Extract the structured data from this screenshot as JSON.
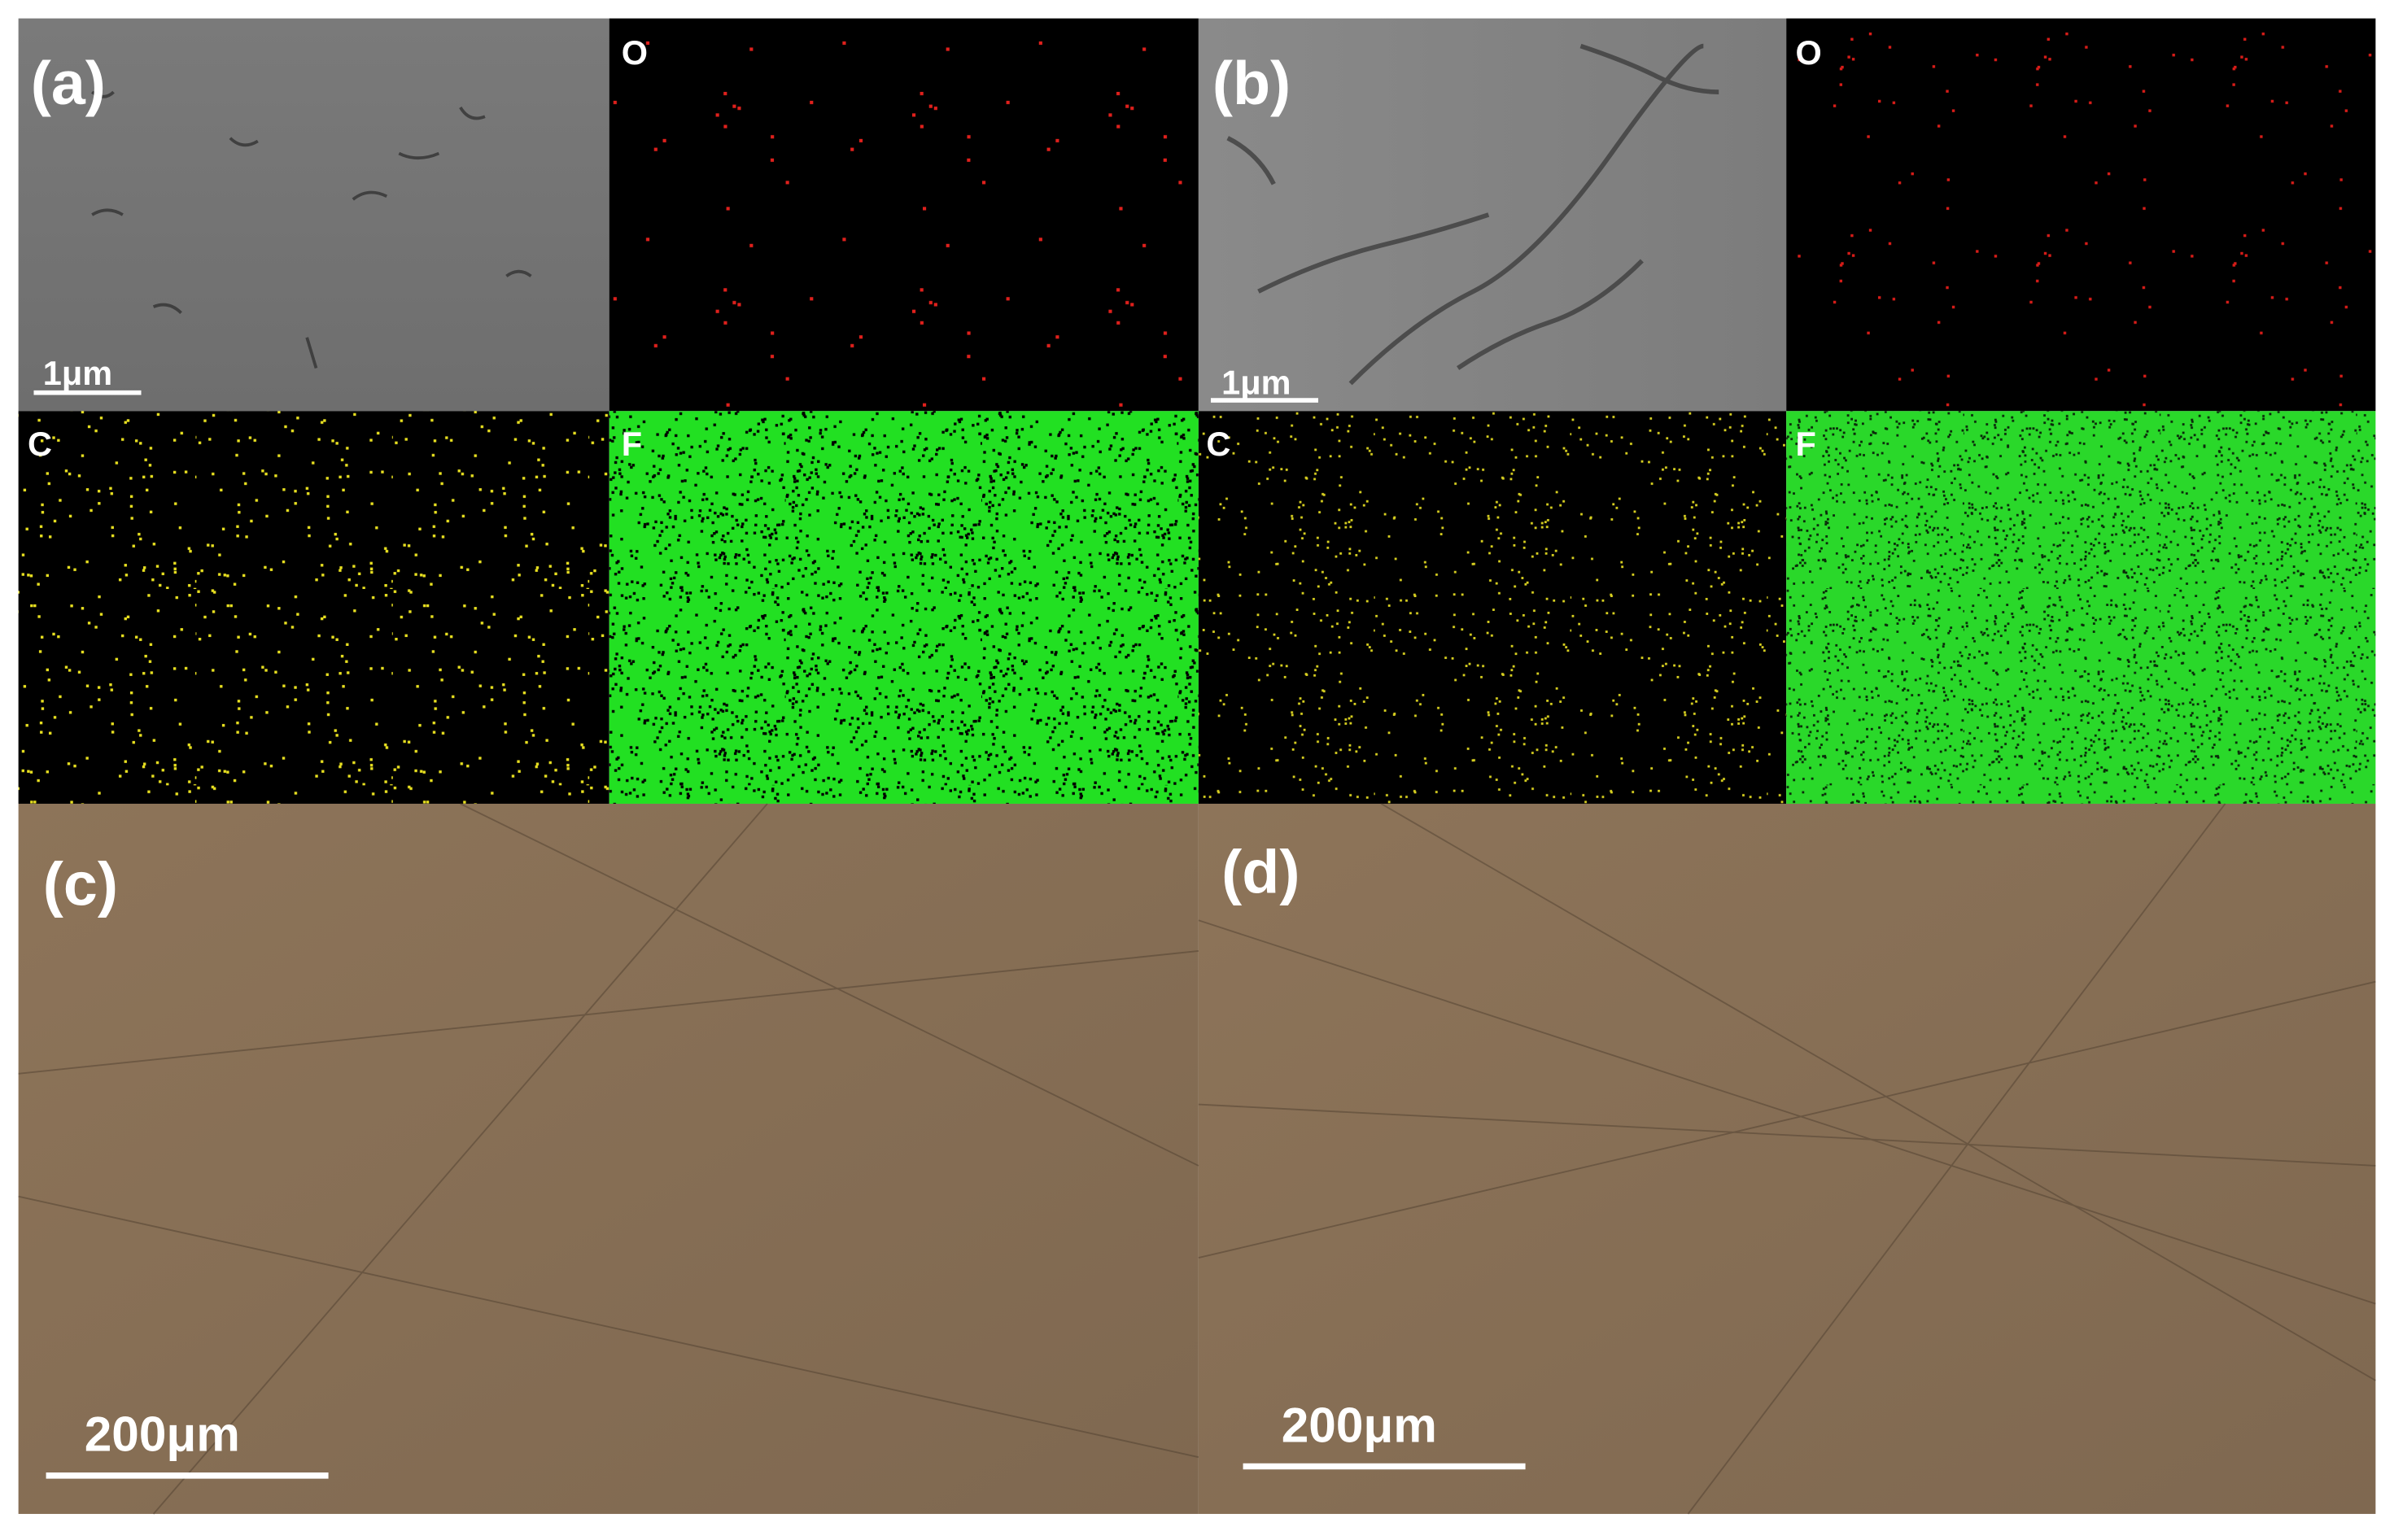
{
  "panel_a": {
    "label": "(a)",
    "scale_bar": "1μm",
    "maps": [
      "O",
      "C",
      "F"
    ]
  },
  "panel_b": {
    "label": "(b)",
    "scale_bar": "1μm",
    "maps": [
      "O",
      "C",
      "F"
    ]
  },
  "panel_c": {
    "label": "(c)",
    "scale_bar": "200μm"
  },
  "panel_d": {
    "label": "(d)",
    "scale_bar": "200μm"
  }
}
